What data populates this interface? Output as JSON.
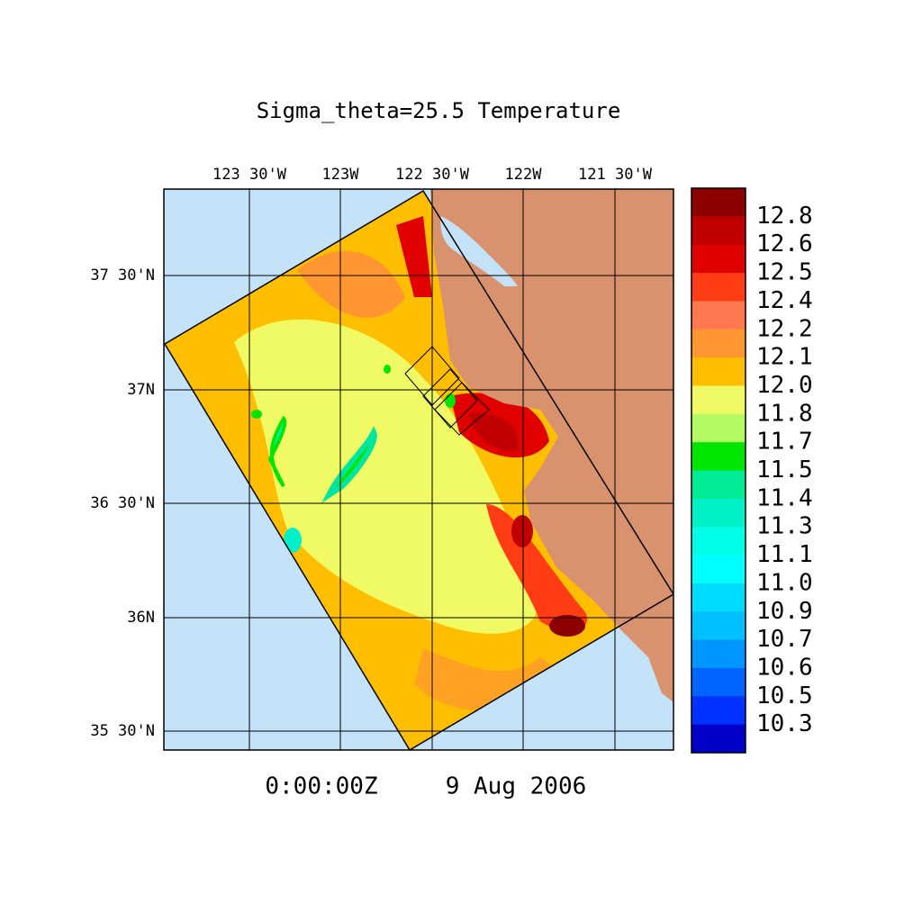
{
  "title": "Sigma_theta=25.5 Temperature",
  "lon_labels": [
    "123 30'W",
    "123W",
    "122 30'W",
    "122W",
    "121 30'W"
  ],
  "lat_labels": [
    "37 30'N",
    "37N",
    "36 30'N",
    "36N",
    "35 30'N"
  ],
  "time": "0:00:00Z",
  "date": "9 Aug 2006",
  "colorbar": {
    "labels": [
      "12.8",
      "12.6",
      "12.5",
      "12.4",
      "12.2",
      "12.1",
      "12.0",
      "11.8",
      "11.7",
      "11.5",
      "11.4",
      "11.3",
      "11.1",
      "11.0",
      "10.9",
      "10.7",
      "10.6",
      "10.5",
      "10.3"
    ],
    "colors": [
      "#8c0000",
      "#c00000",
      "#e00000",
      "#ff3c14",
      "#ff7850",
      "#ff9632",
      "#ffbe00",
      "#f0fa64",
      "#b4fa64",
      "#00e600",
      "#00eb96",
      "#00f0c8",
      "#00ffe6",
      "#00ffff",
      "#00dcff",
      "#00c0ff",
      "#0096ff",
      "#0064ff",
      "#0032ff",
      "#0000c8"
    ]
  }
}
